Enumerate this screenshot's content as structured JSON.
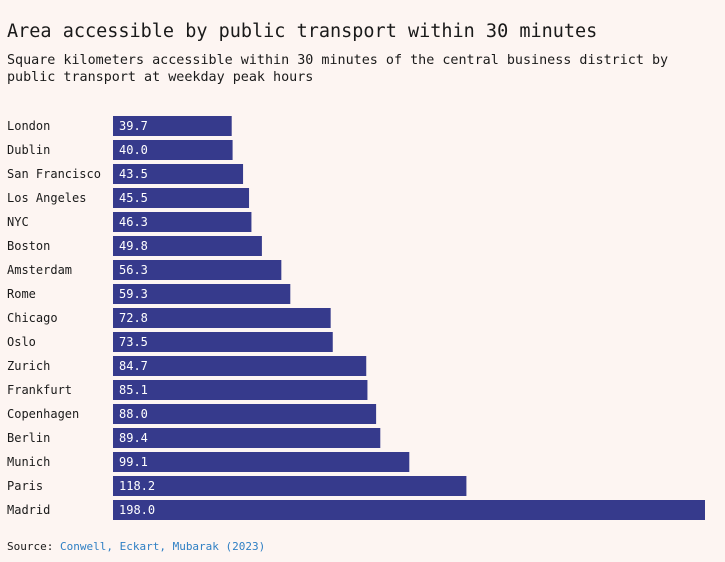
{
  "chart_data": {
    "type": "bar",
    "orientation": "horizontal",
    "title": "Area accessible by public transport within 30 minutes",
    "subtitle": "Square kilometers accessible within 30 minutes of the central business district by public transport at weekday peak hours",
    "categories": [
      "London",
      "Dublin",
      "San Francisco",
      "Los Angeles",
      "NYC",
      "Boston",
      "Amsterdam",
      "Rome",
      "Chicago",
      "Oslo",
      "Zurich",
      "Frankfurt",
      "Copenhagen",
      "Berlin",
      "Munich",
      "Paris",
      "Madrid"
    ],
    "values": [
      39.7,
      40.0,
      43.5,
      45.5,
      46.3,
      49.8,
      56.3,
      59.3,
      72.8,
      73.5,
      84.7,
      85.1,
      88.0,
      89.4,
      99.1,
      118.2,
      198.0
    ],
    "value_labels": [
      "39.7",
      "40.0",
      "43.5",
      "45.5",
      "46.3",
      "49.8",
      "56.3",
      "59.3",
      "72.8",
      "73.5",
      "84.7",
      "85.1",
      "88.0",
      "89.4",
      "99.1",
      "118.2",
      "198.0"
    ],
    "xlim": [
      0,
      198.0
    ],
    "grid": false,
    "legend": "none",
    "bar_color": "#363a8c"
  },
  "source": {
    "prefix": "Source: ",
    "link_text": "Conwell, Eckart, Mubarak (2023)"
  }
}
